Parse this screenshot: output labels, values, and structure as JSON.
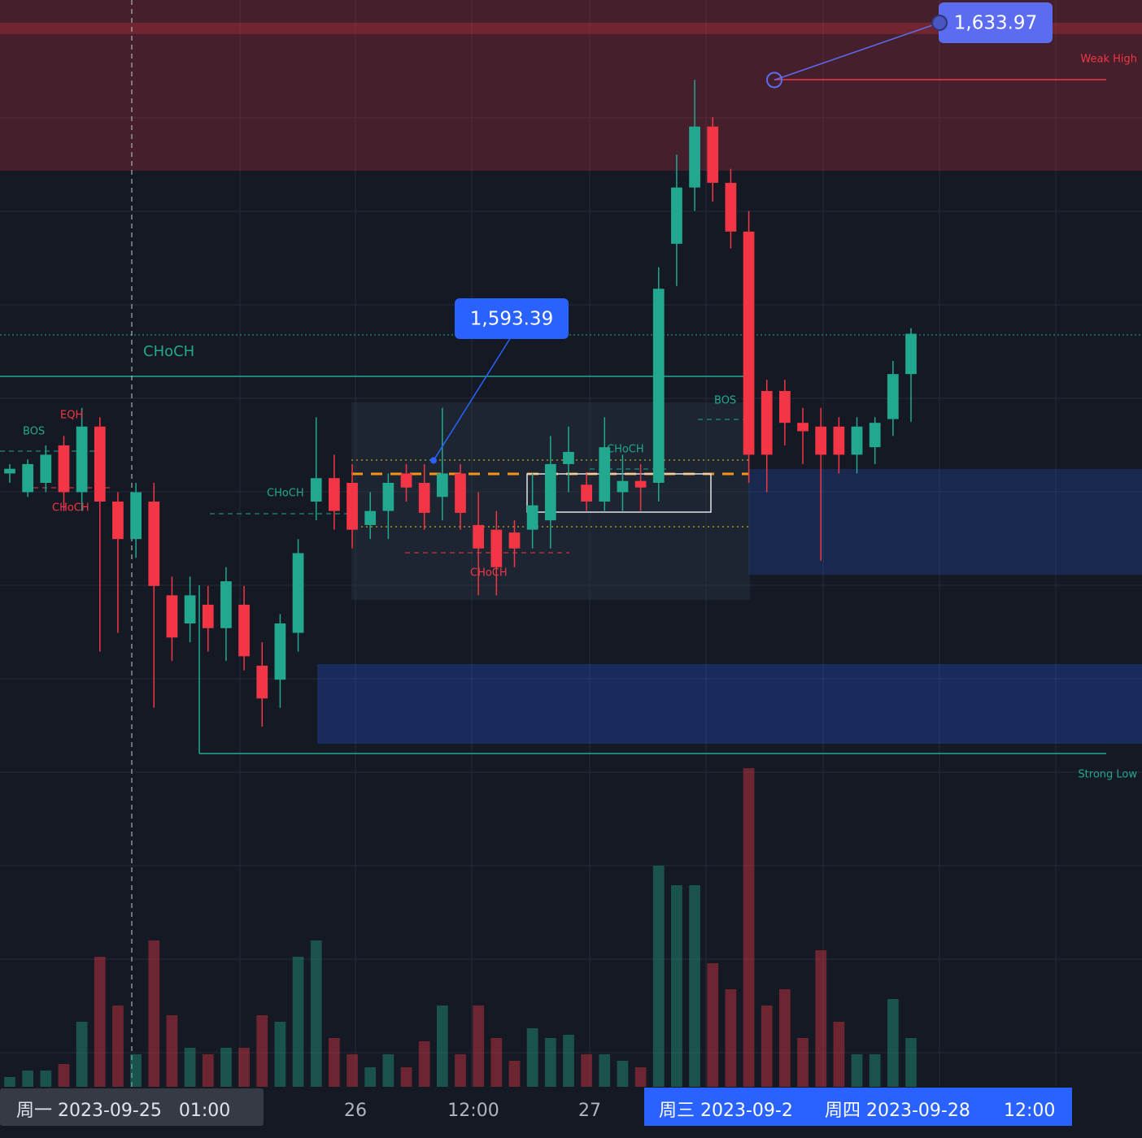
{
  "chart_data": {
    "type": "candlestick",
    "ylim": [
      1561,
      1642.5
    ],
    "volume_lim": [
      0,
      100
    ],
    "up_color": "#22a88f",
    "down_color": "#f23645",
    "price_labels": [
      {
        "value": 1633.97,
        "label": "1,633.97"
      },
      {
        "value": 1593.39,
        "label": "1,593.39"
      }
    ],
    "annotations": {
      "weak_high": "Weak High",
      "strong_low": "Strong Low",
      "choch_main": "CHoCH",
      "eqh": "EQH",
      "bos_left": "BOS",
      "choch_left": "CHoCH",
      "choch_mid": "CHoCH",
      "choch_mid_low": "CHoCH",
      "choch_right": "CHoCH",
      "bos_right": "BOS"
    },
    "x_labels": [
      "周一 2023-09-25   01:00",
      "26",
      "12:00",
      "27",
      "周三 2023-09-2",
      "周四 2023-09-28",
      "12:00"
    ],
    "candles": [
      {
        "o": 1592.0,
        "h": 1593,
        "l": 1591,
        "c": 1592.5
      },
      {
        "o": 1590.0,
        "h": 1593.5,
        "l": 1589.5,
        "c": 1593.0
      },
      {
        "o": 1591,
        "h": 1595,
        "l": 1590,
        "c": 1594
      },
      {
        "o": 1595,
        "h": 1596,
        "l": 1588,
        "c": 1590
      },
      {
        "o": 1590,
        "h": 1599,
        "l": 1588,
        "c": 1597
      },
      {
        "o": 1597,
        "h": 1598,
        "l": 1573,
        "c": 1589
      },
      {
        "o": 1589,
        "h": 1590,
        "l": 1575,
        "c": 1585
      },
      {
        "o": 1585,
        "h": 1591,
        "l": 1583,
        "c": 1590
      },
      {
        "o": 1589,
        "h": 1591,
        "l": 1567,
        "c": 1580
      },
      {
        "o": 1579,
        "h": 1581,
        "l": 1572,
        "c": 1574.5
      },
      {
        "o": 1576,
        "h": 1581,
        "l": 1574,
        "c": 1579
      },
      {
        "o": 1578,
        "h": 1580,
        "l": 1573,
        "c": 1575.5
      },
      {
        "o": 1575.5,
        "h": 1582,
        "l": 1572,
        "c": 1580.5
      },
      {
        "o": 1578,
        "h": 1580,
        "l": 1571,
        "c": 1572.5
      },
      {
        "o": 1571.5,
        "h": 1574,
        "l": 1565,
        "c": 1568
      },
      {
        "o": 1570,
        "h": 1577,
        "l": 1567,
        "c": 1576
      },
      {
        "o": 1575,
        "h": 1585,
        "l": 1573,
        "c": 1583.5
      },
      {
        "o": 1589,
        "h": 1598,
        "l": 1587,
        "c": 1591.5
      },
      {
        "o": 1591.5,
        "h": 1594,
        "l": 1586,
        "c": 1588
      },
      {
        "o": 1591,
        "h": 1593,
        "l": 1584,
        "c": 1586
      },
      {
        "o": 1586.5,
        "h": 1590,
        "l": 1585,
        "c": 1588
      },
      {
        "o": 1588,
        "h": 1592,
        "l": 1585,
        "c": 1591
      },
      {
        "o": 1592,
        "h": 1593,
        "l": 1589,
        "c": 1590.5
      },
      {
        "o": 1591,
        "h": 1593,
        "l": 1586,
        "c": 1587.8
      },
      {
        "o": 1589.5,
        "h": 1599,
        "l": 1587,
        "c": 1592
      },
      {
        "o": 1592,
        "h": 1593,
        "l": 1586,
        "c": 1587.8
      },
      {
        "o": 1586.5,
        "h": 1590,
        "l": 1579,
        "c": 1584
      },
      {
        "o": 1586,
        "h": 1588,
        "l": 1579,
        "c": 1582
      },
      {
        "o": 1585.7,
        "h": 1587,
        "l": 1582,
        "c": 1584
      },
      {
        "o": 1586,
        "h": 1592,
        "l": 1584,
        "c": 1588.6
      },
      {
        "o": 1587,
        "h": 1596,
        "l": 1584,
        "c": 1593
      },
      {
        "o": 1593,
        "h": 1597,
        "l": 1590,
        "c": 1594.3
      },
      {
        "o": 1590.8,
        "h": 1592,
        "l": 1588,
        "c": 1589
      },
      {
        "o": 1589,
        "h": 1598,
        "l": 1588,
        "c": 1594.8
      },
      {
        "o": 1590,
        "h": 1594,
        "l": 1588,
        "c": 1591.2
      },
      {
        "o": 1591.2,
        "h": 1593,
        "l": 1588,
        "c": 1590.5
      },
      {
        "o": 1591,
        "h": 1614,
        "l": 1589,
        "c": 1611.7
      },
      {
        "o": 1616.5,
        "h": 1626,
        "l": 1612,
        "c": 1622.5
      },
      {
        "o": 1622.5,
        "h": 1633.97,
        "l": 1620,
        "c": 1629
      },
      {
        "o": 1629,
        "h": 1630,
        "l": 1621,
        "c": 1623
      },
      {
        "o": 1623,
        "h": 1624.5,
        "l": 1616,
        "c": 1617.8
      },
      {
        "o": 1617.8,
        "h": 1620,
        "l": 1591,
        "c": 1594
      },
      {
        "o": 1600.8,
        "h": 1602,
        "l": 1590,
        "c": 1594
      },
      {
        "o": 1600.8,
        "h": 1602,
        "l": 1595,
        "c": 1597.4
      },
      {
        "o": 1597.4,
        "h": 1599,
        "l": 1593,
        "c": 1596.5
      },
      {
        "o": 1597,
        "h": 1599,
        "l": 1582.7,
        "c": 1594
      },
      {
        "o": 1597,
        "h": 1598,
        "l": 1592,
        "c": 1594
      },
      {
        "o": 1594,
        "h": 1598,
        "l": 1592,
        "c": 1597
      },
      {
        "o": 1594.8,
        "h": 1598,
        "l": 1593,
        "c": 1597.4
      },
      {
        "o": 1597.8,
        "h": 1604,
        "l": 1596,
        "c": 1602.6
      },
      {
        "o": 1602.6,
        "h": 1607.5,
        "l": 1597.5,
        "c": 1606.9
      }
    ],
    "volume": [
      3,
      5,
      5,
      7,
      20,
      40,
      25,
      10,
      45,
      22,
      12,
      10,
      12,
      12,
      22,
      20,
      40,
      45,
      15,
      10,
      6,
      10,
      6,
      14,
      25,
      10,
      25,
      15,
      8,
      18,
      15,
      16,
      10,
      10,
      8,
      6,
      68,
      62,
      62,
      38,
      30,
      98,
      25,
      30,
      15,
      42,
      20,
      10,
      10,
      27,
      15
    ]
  }
}
